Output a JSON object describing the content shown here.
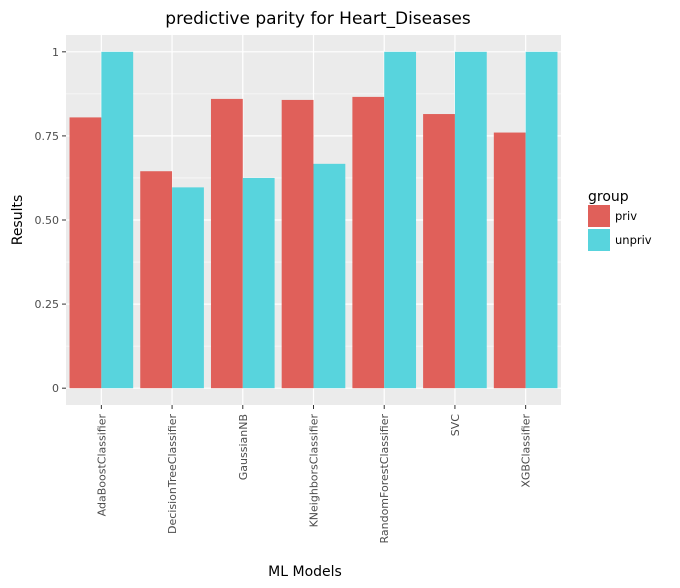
{
  "chart_data": {
    "type": "bar",
    "title": "predictive parity for Heart_Diseases",
    "xlabel": "ML Models",
    "ylabel": "Results",
    "categories": [
      "AdaBoostClassifier",
      "DecisionTreeClassifier",
      "GaussianNB",
      "KNeighborsClassifier",
      "RandomForestClassifier",
      "SVC",
      "XGBClassifier"
    ],
    "series": [
      {
        "name": "priv",
        "color": "#e0605a",
        "values": [
          0.805,
          0.645,
          0.86,
          0.857,
          0.866,
          0.815,
          0.76
        ]
      },
      {
        "name": "unpriv",
        "color": "#58d4dd",
        "values": [
          1.0,
          0.597,
          0.625,
          0.667,
          1.0,
          1.0,
          1.0
        ]
      }
    ],
    "ylim": [
      -0.05,
      1.05
    ],
    "yticks": [
      0,
      0.25,
      0.5,
      0.75,
      1
    ],
    "ytick_labels": [
      "0",
      "0.25",
      "0.50",
      "0.75",
      "1"
    ],
    "legend": {
      "title": "group",
      "placement": "right"
    },
    "grid": true,
    "panel_background": "#ebebeb"
  }
}
